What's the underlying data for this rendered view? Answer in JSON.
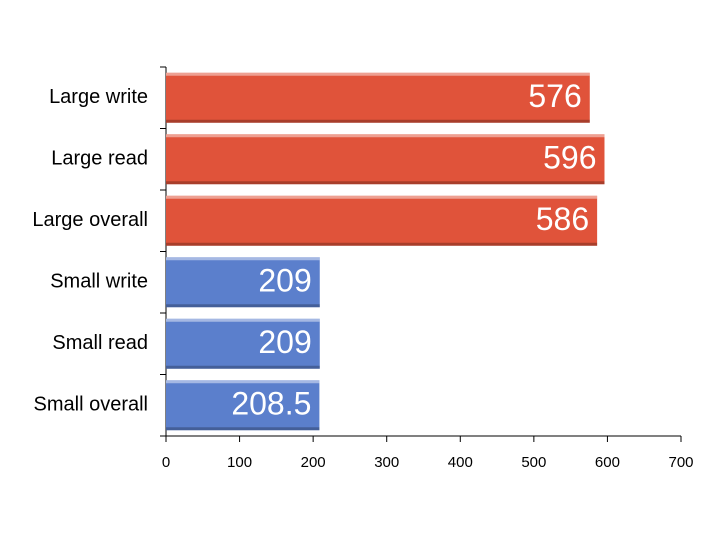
{
  "chart_data": {
    "type": "hbar",
    "categories": [
      "Large write",
      "Large read",
      "Large overall",
      "Small write",
      "Small read",
      "Small overall"
    ],
    "values": [
      576,
      596,
      586,
      209,
      209,
      208.5
    ],
    "colors": [
      "#e0533a",
      "#e0533a",
      "#e0533a",
      "#5b7fcc",
      "#5b7fcc",
      "#5b7fcc"
    ],
    "xlim": [
      0,
      700
    ],
    "xticks": [
      0,
      100,
      200,
      300,
      400,
      500,
      600,
      700
    ]
  }
}
